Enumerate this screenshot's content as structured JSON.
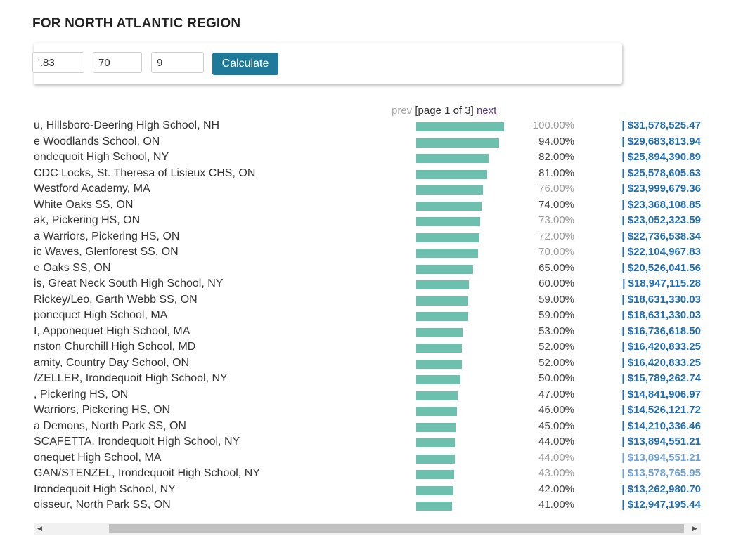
{
  "page": {
    "title": "FOR NORTH ATLANTIC REGION"
  },
  "calculator": {
    "inputs": [
      "'.83",
      "70",
      "9"
    ],
    "button_label": "Calculate"
  },
  "pager": {
    "prev": "prev",
    "status": "[page 1 of 3]",
    "next": "next"
  },
  "rows": [
    {
      "name": "u, Hillsboro-Deering High School, NH",
      "percent": "100.00%",
      "share": 1.0,
      "amount": "| $31,578,525.47",
      "muted": true
    },
    {
      "name": "e Woodlands School, ON",
      "percent": "94.00%",
      "share": 0.94,
      "amount": "| $29,683,813.94",
      "muted": false
    },
    {
      "name": "ondequoit High School, NY",
      "percent": "82.00%",
      "share": 0.82,
      "amount": "| $25,894,390.89",
      "muted": false
    },
    {
      "name": "CDC Locks, St. Theresa of Lisieux CHS, ON",
      "percent": "81.00%",
      "share": 0.81,
      "amount": "| $25,578,605.63",
      "muted": false
    },
    {
      "name": "Westford Academy, MA",
      "percent": "76.00%",
      "share": 0.76,
      "amount": "| $23,999,679.36",
      "muted": true
    },
    {
      "name": "White Oaks SS, ON",
      "percent": "74.00%",
      "share": 0.74,
      "amount": "| $23,368,108.85",
      "muted": false
    },
    {
      "name": "ak, Pickering HS, ON",
      "percent": "73.00%",
      "share": 0.73,
      "amount": "| $23,052,323.59",
      "muted": true
    },
    {
      "name": "a Warriors, Pickering HS, ON",
      "percent": "72.00%",
      "share": 0.72,
      "amount": "| $22,736,538.34",
      "muted": true
    },
    {
      "name": "ic Waves, Glenforest SS, ON",
      "percent": "70.00%",
      "share": 0.7,
      "amount": "| $22,104,967.83",
      "muted": true
    },
    {
      "name": "e Oaks SS, ON",
      "percent": "65.00%",
      "share": 0.65,
      "amount": "| $20,526,041.56",
      "muted": false
    },
    {
      "name": "is, Great Neck South High School, NY",
      "percent": "60.00%",
      "share": 0.6,
      "amount": "| $18,947,115.28",
      "muted": false
    },
    {
      "name": "Rickey/Leo, Garth Webb SS, ON",
      "percent": "59.00%",
      "share": 0.59,
      "amount": "| $18,631,330.03",
      "muted": false
    },
    {
      "name": "ponequet High School, MA",
      "percent": "59.00%",
      "share": 0.59,
      "amount": "| $18,631,330.03",
      "muted": false
    },
    {
      "name": "I, Apponequet High School, MA",
      "percent": "53.00%",
      "share": 0.53,
      "amount": "| $16,736,618.50",
      "muted": false
    },
    {
      "name": "nston Churchill High School, MD",
      "percent": "52.00%",
      "share": 0.52,
      "amount": "| $16,420,833.25",
      "muted": false
    },
    {
      "name": "amity, Country Day School, ON",
      "percent": "52.00%",
      "share": 0.52,
      "amount": "| $16,420,833.25",
      "muted": false
    },
    {
      "name": "/ZELLER, Irondequoit High School, NY",
      "percent": "50.00%",
      "share": 0.5,
      "amount": "| $15,789,262.74",
      "muted": false
    },
    {
      "name": ", Pickering HS, ON",
      "percent": "47.00%",
      "share": 0.47,
      "amount": "| $14,841,906.97",
      "muted": false
    },
    {
      "name": "Warriors, Pickering HS, ON",
      "percent": "46.00%",
      "share": 0.46,
      "amount": "| $14,526,121.72",
      "muted": false
    },
    {
      "name": "a Demons, North Park SS, ON",
      "percent": "45.00%",
      "share": 0.45,
      "amount": "| $14,210,336.46",
      "muted": false
    },
    {
      "name": "SCAFETTA, Irondequoit High School, NY",
      "percent": "44.00%",
      "share": 0.44,
      "amount": "| $13,894,551.21",
      "muted": false
    },
    {
      "name": "onequet High School, MA",
      "percent": "44.00%",
      "share": 0.44,
      "amount": "| $13,894,551.21",
      "muted": true
    },
    {
      "name": "GAN/STENZEL, Irondequoit High School, NY",
      "percent": "43.00%",
      "share": 0.43,
      "amount": "| $13,578,765.95",
      "muted": true
    },
    {
      "name": "Irondequoit High School, NY",
      "percent": "42.00%",
      "share": 0.42,
      "amount": "| $13,262,980.70",
      "muted": false
    },
    {
      "name": "oisseur, North Park SS, ON",
      "percent": "41.00%",
      "share": 0.41,
      "amount": "| $12,947,195.44",
      "muted": false
    }
  ],
  "scrollbar": {
    "left_icon": "scroll-left-arrow-icon",
    "right_icon": "scroll-right-arrow-icon"
  },
  "colors": {
    "bar": "#6dbfae",
    "button": "#1f7a99",
    "amount": "#1f6fb8",
    "next_link": "#5b3a8c"
  }
}
